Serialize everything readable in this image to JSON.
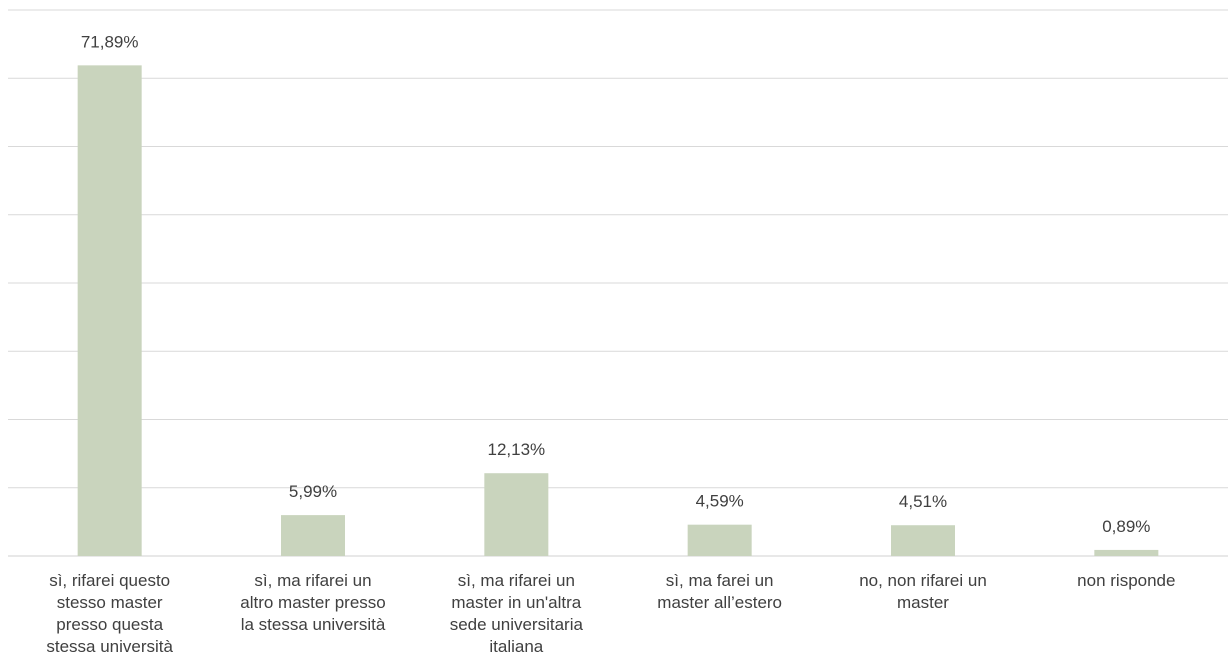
{
  "chart_data": {
    "type": "bar",
    "categories": [
      [
        "sì, rifarei questo",
        "stesso master",
        "presso questa",
        "stessa università"
      ],
      [
        "sì, ma rifarei un",
        "altro master presso",
        "la stessa università"
      ],
      [
        "sì, ma rifarei un",
        "master in un'altra",
        "sede universitaria",
        "italiana"
      ],
      [
        "sì, ma farei un",
        "master all’estero"
      ],
      [
        "no, non rifarei un",
        "master"
      ],
      [
        "non risponde"
      ]
    ],
    "values": [
      71.89,
      5.99,
      12.13,
      4.59,
      4.51,
      0.89
    ],
    "value_labels": [
      "71,89%",
      "5,99%",
      "12,13%",
      "4,59%",
      "4,51%",
      "0,89%"
    ],
    "title": "",
    "xlabel": "",
    "ylabel": "",
    "ylim": [
      0,
      80
    ],
    "grid": true,
    "bar_color": "#c9d4bd",
    "gridline_color": "#d9d9d9",
    "text_color": "#404040"
  }
}
